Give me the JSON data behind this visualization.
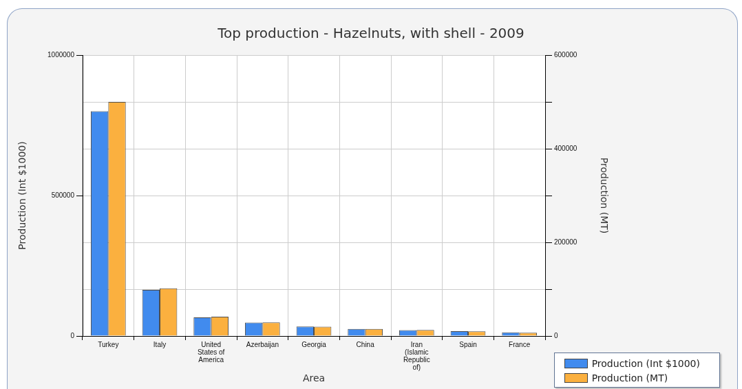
{
  "chart_data": {
    "type": "bar",
    "title": "Top production - Hazelnuts, with shell - 2009",
    "xlabel": "Area",
    "ylabel": "Production (Int $1000)",
    "y2label": "Production (MT)",
    "categories": [
      "Turkey",
      "Italy",
      "United States of America",
      "Azerbaijan",
      "Georgia",
      "China",
      "Iran (Islamic Republic of)",
      "Spain",
      "France"
    ],
    "series": [
      {
        "name": "Production (Int $1000)",
        "color": "#418bee",
        "values": [
          800000,
          164000,
          66000,
          48000,
          34000,
          25000,
          21000,
          17000,
          13000
        ]
      },
      {
        "name": "Production (MT)",
        "color": "#fbb03f",
        "axis": "y2",
        "values": [
          500000,
          102000,
          41000,
          29000,
          20000,
          15000,
          13000,
          10000,
          7000
        ]
      }
    ],
    "ylim": [
      0,
      1000000
    ],
    "yticks": [
      0,
      500000,
      1000000
    ],
    "y2lim": [
      0,
      600000
    ],
    "y2ticks": [
      0,
      {
        "value": 100000,
        "label": null
      },
      200000,
      {
        "value": 300000,
        "label": null
      },
      400000,
      {
        "value": 500000,
        "label": null
      },
      600000
    ],
    "grid": true,
    "legend": "bottom right"
  }
}
